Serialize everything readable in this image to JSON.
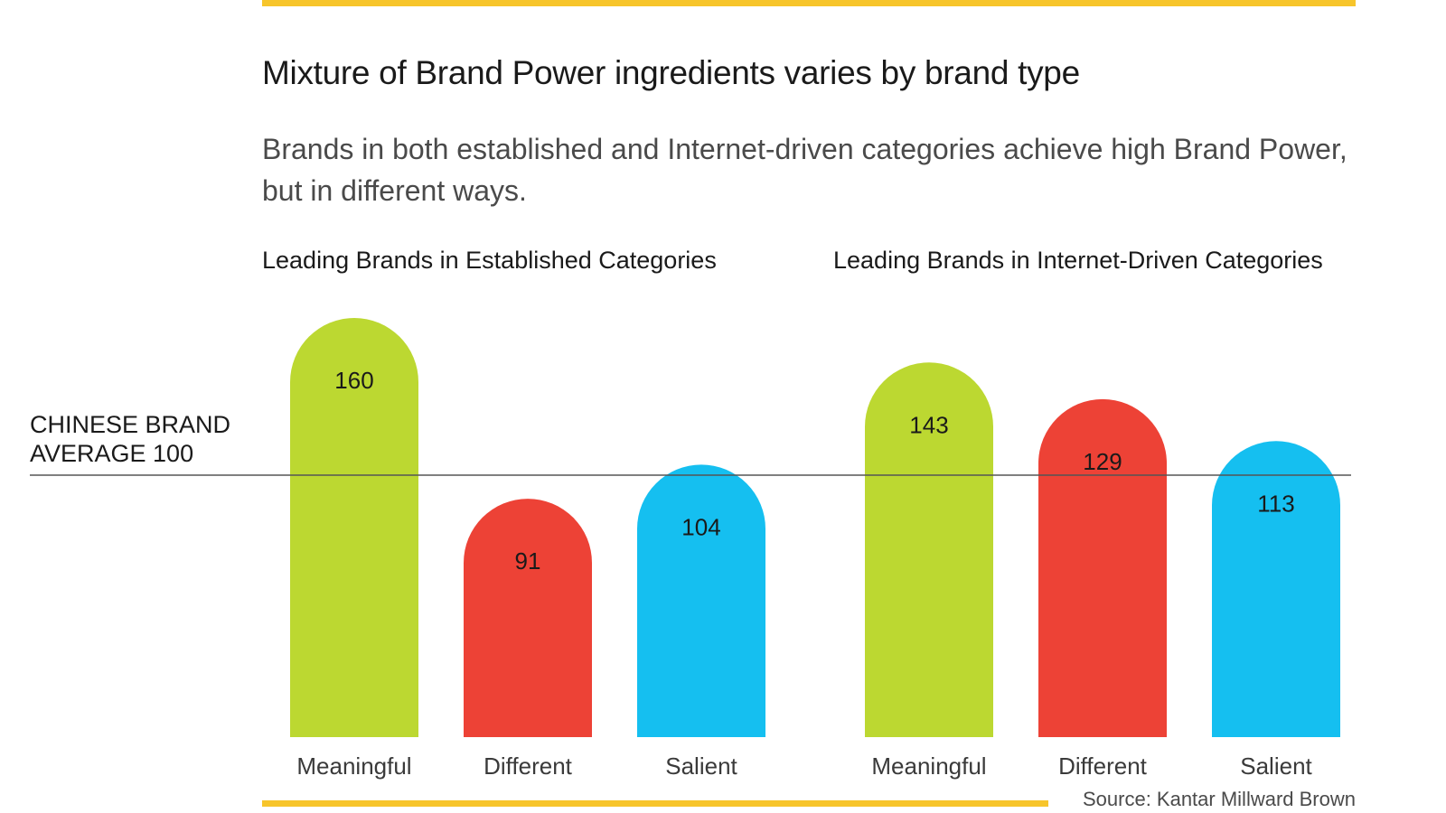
{
  "title": "Mixture of Brand Power ingredients varies by brand type",
  "subtitle": "Brands in both established and Internet-driven categories achieve high Brand Power, but in different ways.",
  "average_label": {
    "line1": "CHINESE BRAND",
    "line2": "AVERAGE 100"
  },
  "source": "Source: Kantar Millward Brown",
  "colors": {
    "accent_rule": "#f7c52b",
    "meaningful": "#bcd831",
    "different": "#ed4236",
    "salient": "#15bff0",
    "average_line": "#555555"
  },
  "chart_data": [
    {
      "type": "bar",
      "title": "Leading Brands in Established Categories",
      "categories": [
        "Meaningful",
        "Different",
        "Salient"
      ],
      "values": [
        160,
        91,
        104
      ],
      "reference_line": 100,
      "ylim": [
        0,
        170
      ]
    },
    {
      "type": "bar",
      "title": "Leading Brands in Internet-Driven Categories",
      "categories": [
        "Meaningful",
        "Different",
        "Salient"
      ],
      "values": [
        143,
        129,
        113
      ],
      "reference_line": 100,
      "ylim": [
        0,
        170
      ]
    }
  ]
}
